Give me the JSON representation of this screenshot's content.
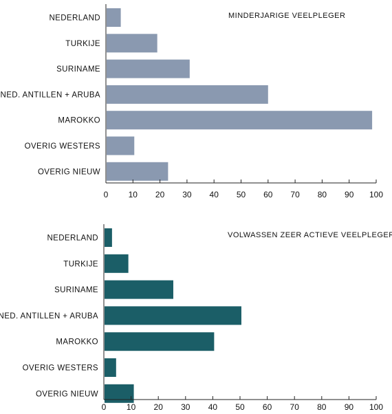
{
  "chart_data": [
    {
      "type": "bar",
      "orientation": "horizontal",
      "title": "MINDERJARIGE VEELPLEGER",
      "categories": [
        "NEDERLAND",
        "TURKIJE",
        "SURINAME",
        "NED. ANTILLEN + ARUBA",
        "MAROKKO",
        "OVERIG WESTERS",
        "OVERIG NIEUW"
      ],
      "values": [
        5.5,
        19,
        31,
        60,
        98.5,
        10.5,
        23
      ],
      "xlim": [
        0,
        100
      ],
      "xticks": [
        "0",
        "10",
        "20",
        "30",
        "40",
        "50",
        "60",
        "70",
        "80",
        "90",
        "100"
      ],
      "color": "#8a99b0",
      "grid": false
    },
    {
      "type": "bar",
      "orientation": "horizontal",
      "title": "VOLWASSEN ZEER ACTIEVE VEELPLEGER",
      "categories": [
        "NEDERLAND",
        "TURKIJE",
        "SURINAME",
        "NED. ANTILLEN + ARUBA",
        "MAROKKO",
        "OVERIG WESTERS",
        "OVERIG NIEUW"
      ],
      "values": [
        3,
        9,
        25.5,
        50.5,
        40.5,
        4.5,
        11
      ],
      "xlim": [
        0,
        100
      ],
      "xticks": [
        "0",
        "10",
        "20",
        "30",
        "40",
        "50",
        "60",
        "70",
        "80",
        "90",
        "100"
      ],
      "color": "#1b5e67",
      "grid": false
    }
  ]
}
